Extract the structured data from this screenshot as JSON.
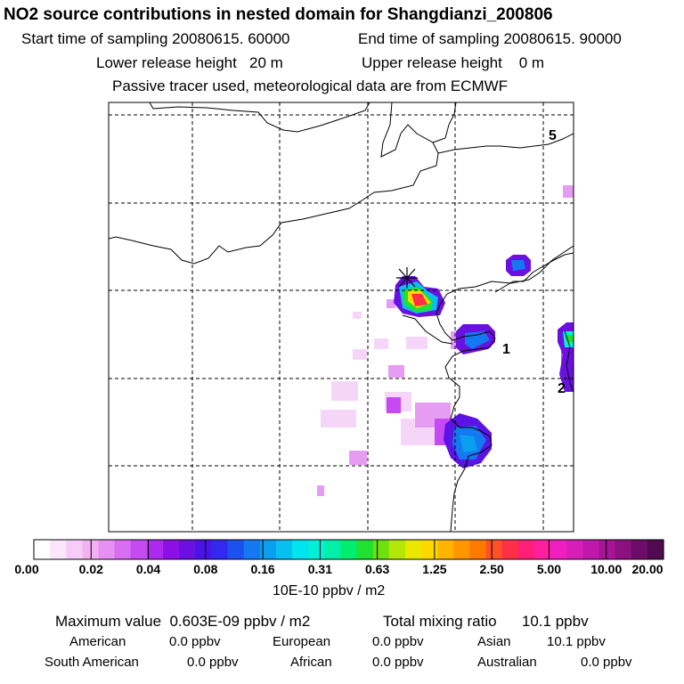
{
  "header": {
    "title": "NO2 source contributions in nested domain for Shangdianzi_200806",
    "start": "Start time of sampling 20080615. 60000",
    "end": "End time of sampling 20080615. 90000",
    "lower": "Lower release height   20 m",
    "upper": "Upper release height    0 m",
    "note": "Passive tracer used, meteorological data are from ECMWF"
  },
  "map": {
    "region_labels": [
      "5",
      "1",
      "2"
    ],
    "site_marker": "Shangdianzi"
  },
  "colorbar": {
    "colors": [
      "#ffffff",
      "#fce6fc",
      "#f8ccf8",
      "#f2b2f2",
      "#e590f2",
      "#d86cf2",
      "#c64af2",
      "#ae28f0",
      "#8c10e6",
      "#6a10e0",
      "#4a14e6",
      "#3228f0",
      "#1e50f0",
      "#1478f0",
      "#0a9ef0",
      "#08c0f0",
      "#00e4f0",
      "#00f0d8",
      "#00f0a8",
      "#00ee70",
      "#20e030",
      "#6ee010",
      "#b4e60a",
      "#e8e800",
      "#ffd800",
      "#ffb400",
      "#ff9600",
      "#ff7800",
      "#ff5028",
      "#ff3046",
      "#ff1e78",
      "#ff1ea0",
      "#f01ec0",
      "#d81eb8",
      "#c018aa",
      "#a81496",
      "#8c1080",
      "#6e0c6a",
      "#500a50"
    ],
    "tick_labels": [
      "0.00",
      "0.02",
      "0.04",
      "0.08",
      "0.16",
      "0.31",
      "0.63",
      "1.25",
      "2.50",
      "5.00",
      "10.00",
      "20.00"
    ],
    "unit": "10E-10 ppbv / m2"
  },
  "summary": {
    "maximum": "Maximum value  0.603E-09 ppbv / m2",
    "total": "Total mixing ratio      10.1 ppbv",
    "american": {
      "label": "American",
      "value": "0.0 ppbv"
    },
    "european": {
      "label": "European",
      "value": "0.0 ppbv"
    },
    "asian": {
      "label": "Asian",
      "value": "10.1 ppbv"
    },
    "south_american": {
      "label": "South American",
      "value": "0.0 ppbv"
    },
    "african": {
      "label": "African",
      "value": "0.0 ppbv"
    },
    "australian": {
      "label": "Australian",
      "value": "0.0 ppbv"
    }
  }
}
